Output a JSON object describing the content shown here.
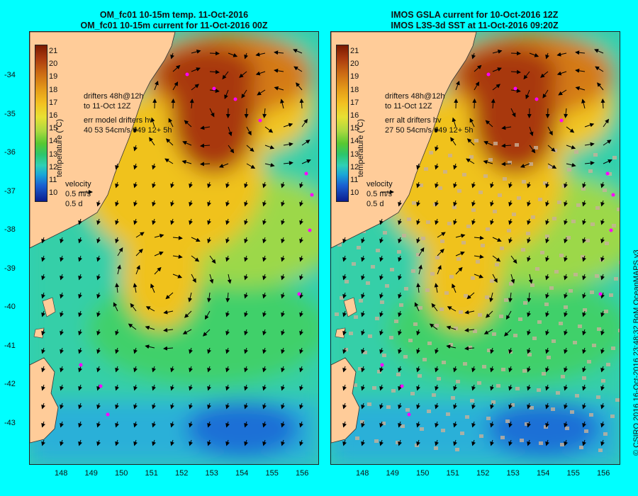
{
  "left_panel": {
    "title_line1": "OM_fc01 10-15m temp. 11-Oct-2016",
    "title_line2": "OM_fc01 10-15m current for 11-Oct-2016 00Z",
    "legend_line1": "drifters 48h@12h",
    "legend_line2": "to 11-Oct 12Z",
    "legend_line3": "err model drifters hv",
    "legend_line4": "40 53 54cm/s 049 12+ 5h"
  },
  "right_panel": {
    "title_line1": "IMOS GSLA current for 10-Oct-2016 12Z",
    "title_line2": "IMOS L3S-3d SST at 11-Oct-2016 09:20Z",
    "legend_line1": "drifters 48h@12h",
    "legend_line2": "to 11-Oct 12Z",
    "legend_line3": "err alt drifters hv",
    "legend_line4": "27 50 54cm/s 049 12+ 5h"
  },
  "colorbar": {
    "label": "temperature (°C)",
    "ticks": [
      "21",
      "20",
      "19",
      "18",
      "17",
      "16",
      "15",
      "14",
      "13",
      "12",
      "11",
      "10"
    ]
  },
  "velocity_legend": {
    "title": "velocity",
    "speed": "0.5 m/s",
    "duration": "0.5 d"
  },
  "axes": {
    "lat_ticks": [
      "-34",
      "-35",
      "-36",
      "-37",
      "-38",
      "-39",
      "-40",
      "-41",
      "-42",
      "-43"
    ],
    "lon_ticks": [
      "148",
      "149",
      "150",
      "151",
      "152",
      "153",
      "154",
      "155",
      "156"
    ]
  },
  "credit": "© CSIRO 2016   16-Oct-2016 23:48:32 BoM OceanMAPS v3",
  "colors": {
    "background": "#00ffff",
    "land": "#ffcc99",
    "warm_eddy": "#a8380e",
    "drifter": "#ff00ff"
  }
}
